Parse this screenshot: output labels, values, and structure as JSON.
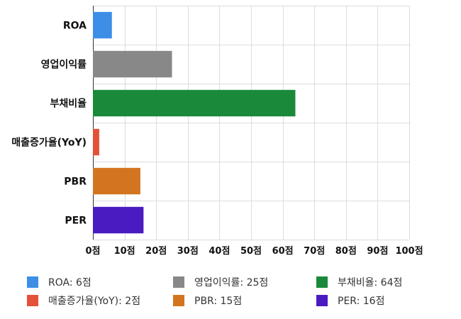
{
  "chart_data": {
    "type": "bar",
    "orientation": "horizontal",
    "categories": [
      "ROA",
      "영업이익률",
      "부채비율",
      "매출증가율(YoY)",
      "PBR",
      "PER"
    ],
    "values": [
      6,
      25,
      64,
      2,
      15,
      16
    ],
    "colors": [
      "#3c8ee6",
      "#888888",
      "#1a8a3a",
      "#e55039",
      "#d37520",
      "#4a1bc0"
    ],
    "xlim": [
      0,
      100
    ],
    "xticks": [
      0,
      10,
      20,
      30,
      40,
      50,
      60,
      70,
      80,
      90,
      100
    ],
    "tick_suffix": "점",
    "grid": true,
    "legend_position": "bottom",
    "legend": [
      {
        "label": "ROA: 6점",
        "color": "#3c8ee6"
      },
      {
        "label": "영업이익률: 25점",
        "color": "#888888"
      },
      {
        "label": "부채비율: 64점",
        "color": "#1a8a3a"
      },
      {
        "label": "매출증가율(YoY): 2점",
        "color": "#e55039"
      },
      {
        "label": "PBR: 15점",
        "color": "#d37520"
      },
      {
        "label": "PER: 16점",
        "color": "#4a1bc0"
      }
    ]
  }
}
